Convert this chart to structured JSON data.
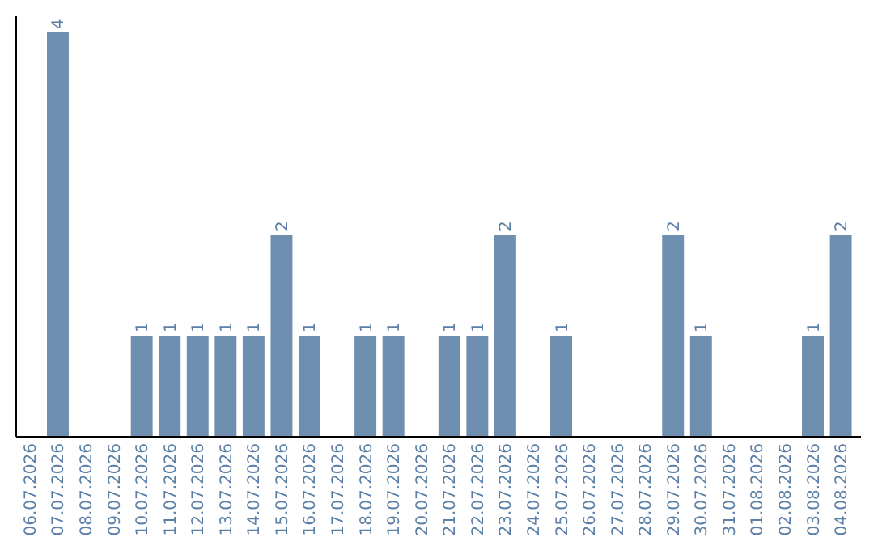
{
  "chart_data": {
    "type": "bar",
    "categories": [
      "06.07.2026",
      "07.07.2026",
      "08.07.2026",
      "09.07.2026",
      "10.07.2026",
      "11.07.2026",
      "12.07.2026",
      "13.07.2026",
      "14.07.2026",
      "15.07.2026",
      "16.07.2026",
      "17.07.2026",
      "18.07.2026",
      "19.07.2026",
      "20.07.2026",
      "21.07.2026",
      "22.07.2026",
      "23.07.2026",
      "24.07.2026",
      "25.07.2026",
      "26.07.2026",
      "27.07.2026",
      "28.07.2026",
      "29.07.2026",
      "30.07.2026",
      "31.07.2026",
      "01.08.2026",
      "02.08.2026",
      "03.08.2026",
      "04.08.2026"
    ],
    "values": [
      0,
      4,
      0,
      0,
      1,
      1,
      1,
      1,
      1,
      2,
      1,
      0,
      1,
      1,
      0,
      1,
      1,
      2,
      0,
      1,
      0,
      0,
      0,
      2,
      1,
      0,
      0,
      0,
      1,
      2
    ],
    "value_labels": [
      null,
      "4",
      null,
      null,
      "1",
      "1",
      "1",
      "1",
      "1",
      "2",
      "1",
      null,
      "1",
      "1",
      null,
      "1",
      "1",
      "2",
      null,
      "1",
      null,
      null,
      null,
      "2",
      "1",
      null,
      null,
      null,
      "1",
      "2"
    ],
    "color": "#6f8fb0"
  }
}
